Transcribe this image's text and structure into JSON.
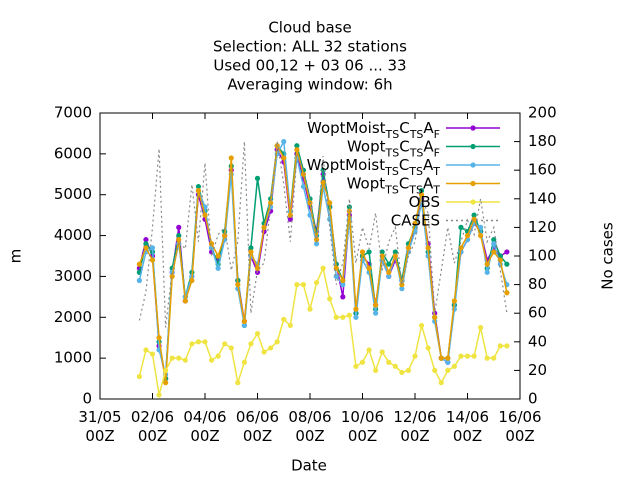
{
  "chart_data": {
    "type": "line",
    "title": "Cloud base",
    "subtitle": [
      "Selection: ALL      32 stations",
      "Used  00,12 + 03 06 ... 33",
      "Averaging window:  6h"
    ],
    "x_label": "Date",
    "y_label": "m",
    "y2_label": "No cases",
    "xlim": [
      "31/05 00Z",
      "16/06 00Z"
    ],
    "xticks": [
      "31/05 00Z",
      "02/06 00Z",
      "04/06 00Z",
      "06/06 00Z",
      "08/06 00Z",
      "10/06 00Z",
      "12/06 00Z",
      "14/06 00Z",
      "16/06 00Z"
    ],
    "ylim": [
      0,
      7000
    ],
    "yticks": [
      0,
      1000,
      2000,
      3000,
      4000,
      5000,
      6000,
      7000
    ],
    "y2lim": [
      0,
      200
    ],
    "y2ticks": [
      0,
      20,
      40,
      60,
      80,
      100,
      120,
      140,
      160,
      180,
      200
    ],
    "grid": false,
    "legend": "upper right",
    "x_start": "01/06 12Z",
    "x_step_hours": 6,
    "series": [
      {
        "name": "WoptMoist_{TS}C_{TS}A_{F}",
        "color": "#9400d3",
        "values": [
          3200,
          3900,
          3500,
          1300,
          500,
          3100,
          4200,
          2400,
          3000,
          5000,
          4400,
          3600,
          3400,
          4000,
          5600,
          2900,
          1900,
          3500,
          3100,
          4100,
          4600,
          6100,
          5800,
          4400,
          6000,
          5400,
          4700,
          4100,
          5500,
          4700,
          3300,
          2500,
          4500,
          2100,
          3500,
          3300,
          2300,
          3400,
          3000,
          3400,
          2900,
          3700,
          4200,
          4900,
          3800,
          2100,
          1000,
          900,
          2300,
          3600,
          3900,
          4300,
          4100,
          3400,
          3700,
          3500,
          3600
        ]
      },
      {
        "name": "Wopt_{TS}C_{TS}A_{F}",
        "color": "#009e73",
        "values": [
          3100,
          3800,
          3600,
          1400,
          500,
          3200,
          4000,
          2500,
          3100,
          5200,
          4600,
          3700,
          3300,
          4100,
          5700,
          2900,
          1800,
          3700,
          5400,
          4300,
          4900,
          6200,
          6000,
          4600,
          6200,
          5600,
          4900,
          4000,
          5600,
          4700,
          3300,
          2900,
          4700,
          2100,
          3500,
          3600,
          2200,
          3600,
          3300,
          3600,
          2900,
          3800,
          4200,
          5100,
          3600,
          2000,
          1000,
          1000,
          2300,
          4200,
          4100,
          4500,
          4100,
          3200,
          3900,
          3500,
          3300
        ]
      },
      {
        "name": "WoptMoist_{TS}C_{TS}A_{T}",
        "color": "#56b4e9",
        "values": [
          2900,
          3600,
          3700,
          1200,
          600,
          3100,
          3800,
          2500,
          3000,
          5100,
          4700,
          3700,
          3200,
          3900,
          5500,
          2700,
          1800,
          3500,
          3300,
          4200,
          4700,
          6000,
          6300,
          4600,
          5900,
          5200,
          4500,
          3800,
          5200,
          4400,
          3000,
          2800,
          4400,
          2000,
          3400,
          3100,
          2100,
          3400,
          3000,
          3500,
          2700,
          3600,
          4100,
          4800,
          3500,
          1900,
          1000,
          900,
          2200,
          3600,
          3900,
          4300,
          4200,
          3100,
          3800,
          3300,
          2800
        ]
      },
      {
        "name": "Wopt_{TS}C_{TS}A_{T}",
        "color": "#e69f00",
        "values": [
          3300,
          3700,
          3400,
          1500,
          400,
          3000,
          3900,
          2400,
          2900,
          5100,
          4500,
          3800,
          3500,
          4000,
          5900,
          2800,
          1900,
          3600,
          3200,
          4200,
          4800,
          6200,
          5900,
          4500,
          6100,
          5500,
          4800,
          3900,
          5300,
          4800,
          3200,
          2900,
          4600,
          2200,
          3600,
          3200,
          2300,
          3500,
          3100,
          3500,
          2800,
          3700,
          4300,
          5000,
          3700,
          2000,
          1000,
          1000,
          2400,
          3700,
          4000,
          4400,
          4000,
          3300,
          3600,
          3400,
          2600
        ]
      },
      {
        "name": "OBS",
        "color": "#f0e442",
        "values": [
          550,
          1200,
          1100,
          100,
          700,
          1000,
          1000,
          950,
          1350,
          1400,
          1400,
          950,
          1050,
          1350,
          1250,
          400,
          900,
          1350,
          1600,
          1150,
          1250,
          1400,
          1950,
          1800,
          2800,
          2800,
          2200,
          2850,
          3200,
          2450,
          2000,
          2000,
          2050,
          800,
          900,
          1200,
          700,
          1150,
          900,
          800,
          650,
          700,
          1050,
          1800,
          1250,
          700,
          400,
          700,
          800,
          1050,
          1050,
          1050,
          1750,
          1000,
          1000,
          1300,
          1300
        ]
      },
      {
        "name": "CASES",
        "color": "#888888",
        "axis": "y2",
        "dashed": true,
        "values": [
          55,
          75,
          120,
          175,
          50,
          90,
          110,
          105,
          150,
          110,
          165,
          100,
          115,
          120,
          90,
          110,
          180,
          60,
          90,
          95,
          135,
          180,
          150,
          110,
          170,
          160,
          140,
          110,
          170,
          120,
          80,
          95,
          140,
          95,
          120,
          105,
          130,
          90,
          110,
          120,
          80,
          100,
          110,
          140,
          130,
          60,
          90,
          120,
          95,
          110,
          125,
          115,
          140,
          110,
          120,
          90,
          60
        ]
      }
    ]
  }
}
